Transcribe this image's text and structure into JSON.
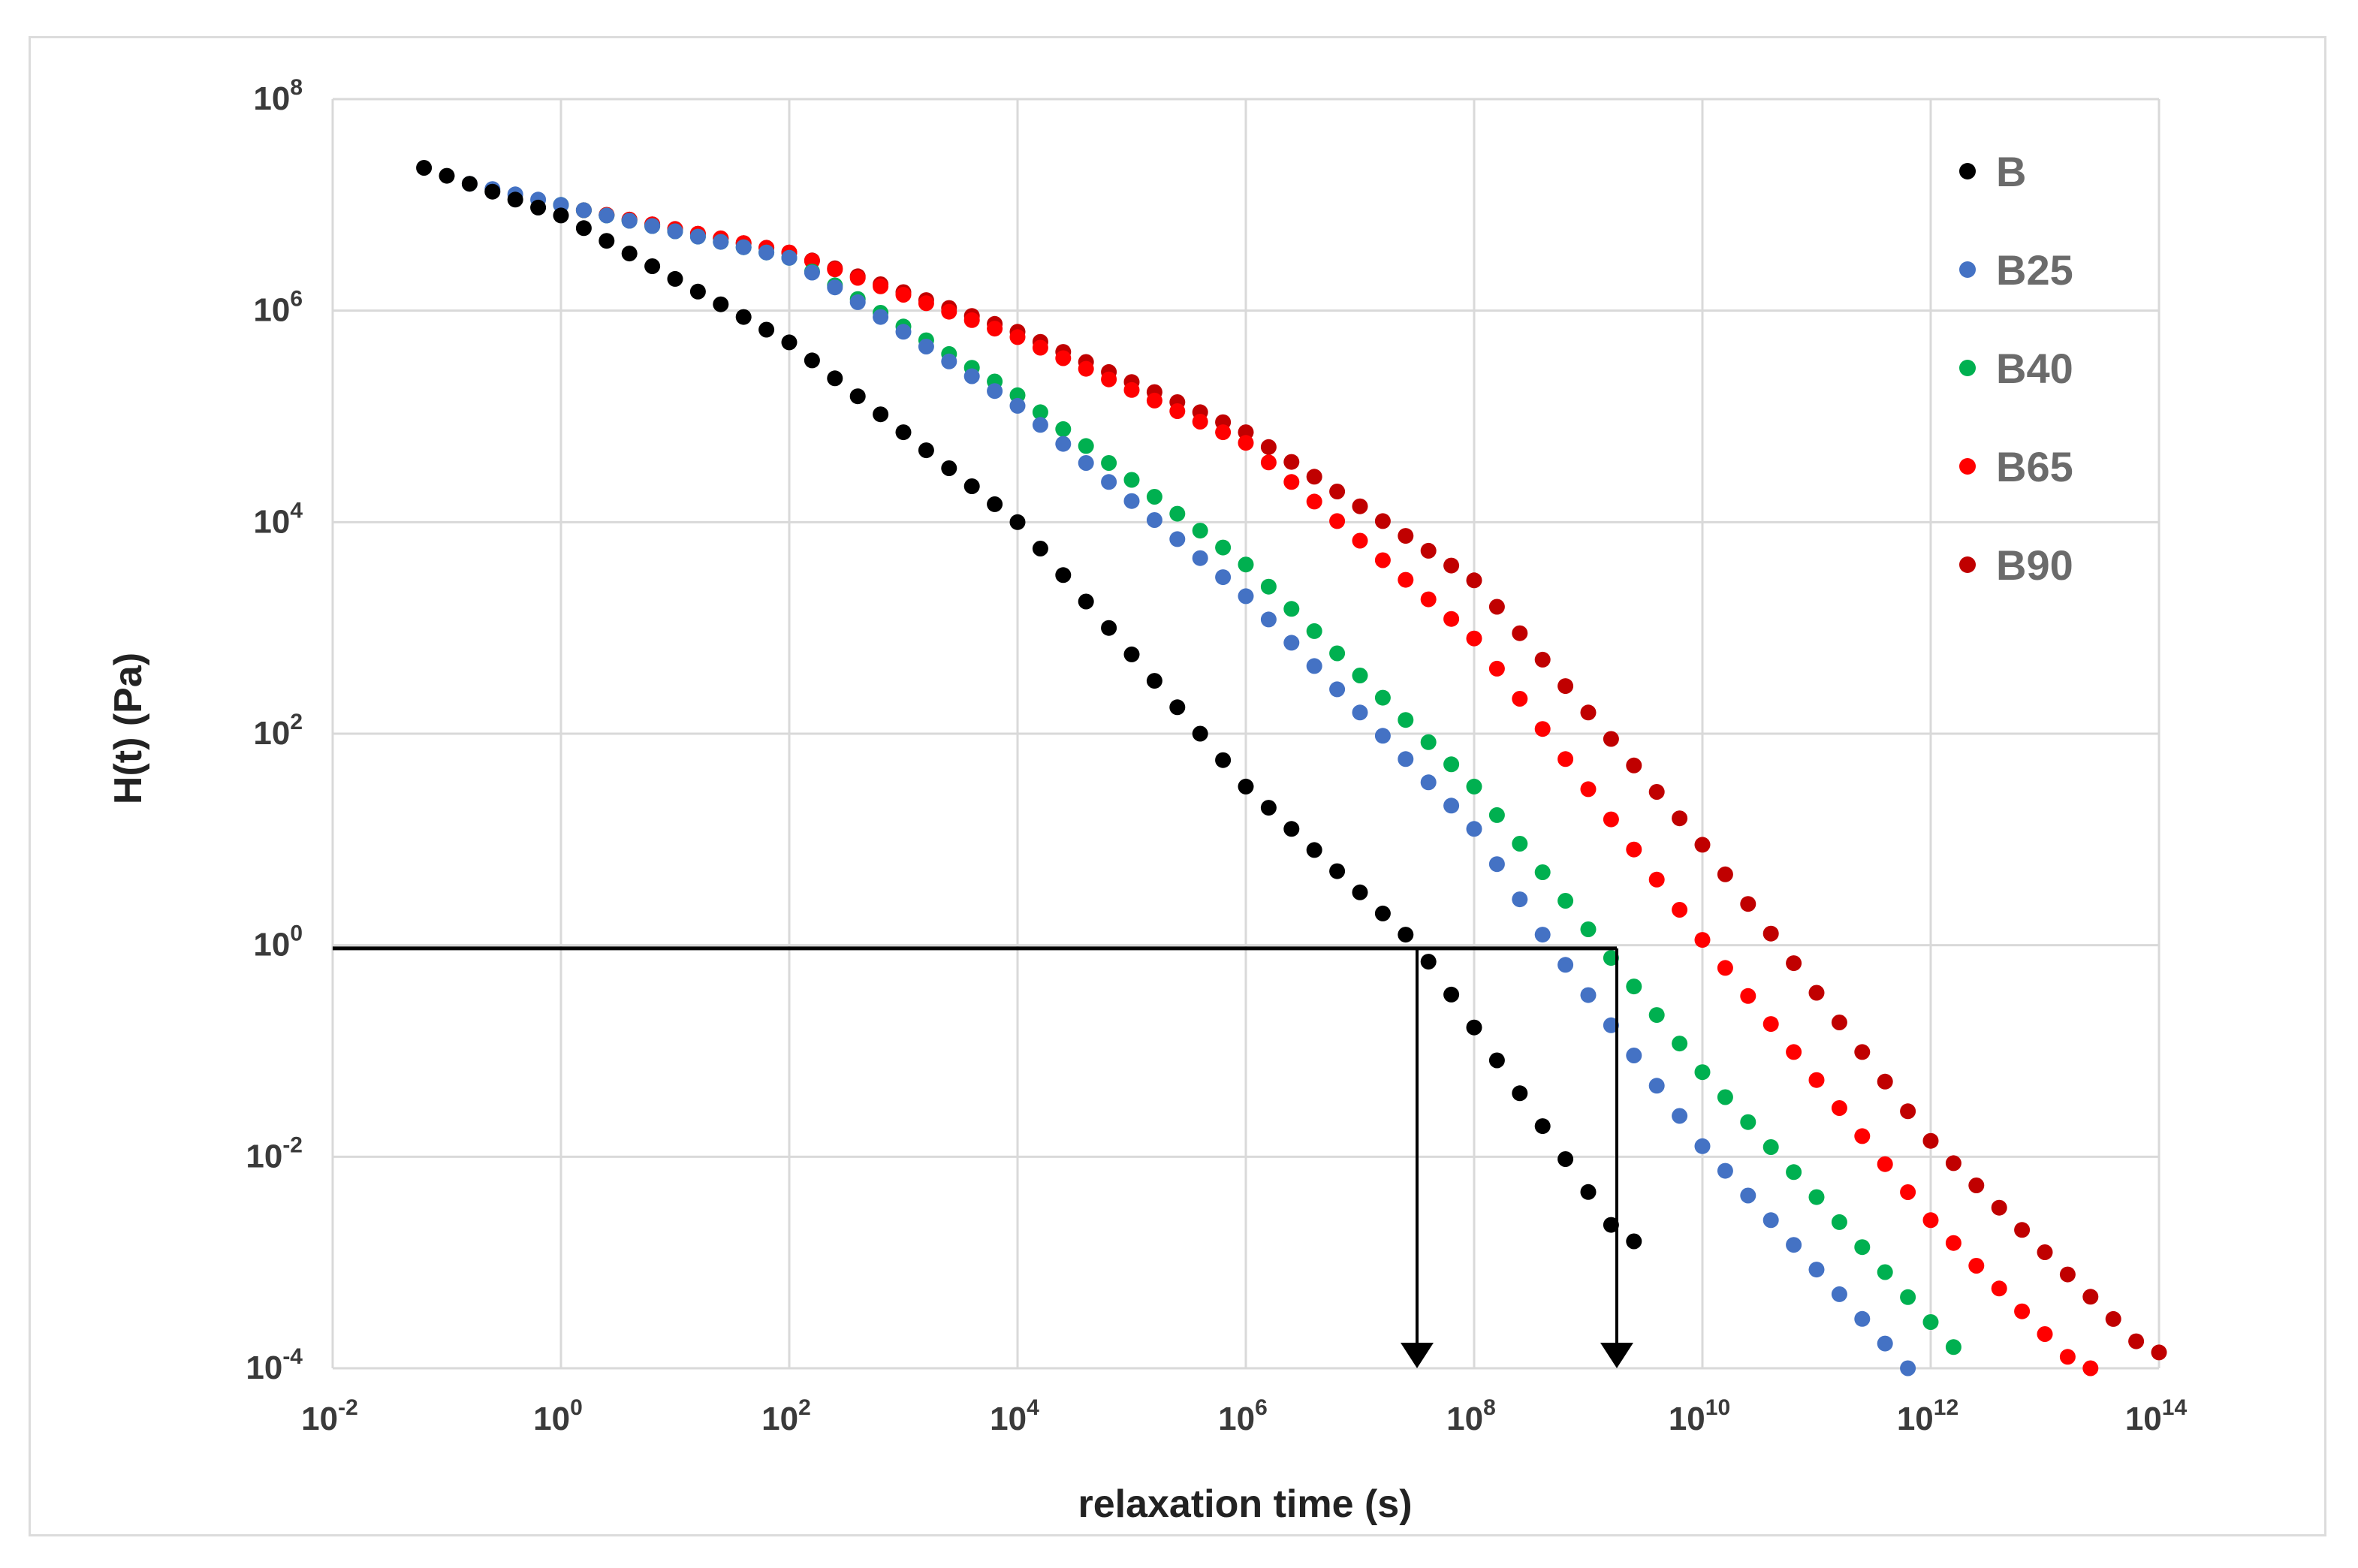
{
  "chart_data": {
    "type": "scatter",
    "title": "",
    "xlabel": "relaxation time (s)",
    "ylabel": "H(t) (Pa)",
    "x_scale": "log",
    "y_scale": "log",
    "xlim_exp": [
      -2,
      14
    ],
    "ylim_exp": [
      -4,
      8
    ],
    "x_ticks": [
      {
        "base": "10",
        "exp": "-2"
      },
      {
        "base": "10",
        "exp": "0"
      },
      {
        "base": "10",
        "exp": "2"
      },
      {
        "base": "10",
        "exp": "4"
      },
      {
        "base": "10",
        "exp": "6"
      },
      {
        "base": "10",
        "exp": "8"
      },
      {
        "base": "10",
        "exp": "10"
      },
      {
        "base": "10",
        "exp": "12"
      },
      {
        "base": "10",
        "exp": "14"
      }
    ],
    "y_ticks": [
      {
        "base": "10",
        "exp": "-4"
      },
      {
        "base": "10",
        "exp": "-2"
      },
      {
        "base": "10",
        "exp": "0"
      },
      {
        "base": "10",
        "exp": "2"
      },
      {
        "base": "10",
        "exp": "4"
      },
      {
        "base": "10",
        "exp": "6"
      },
      {
        "base": "10",
        "exp": "8"
      }
    ],
    "grid": true,
    "legend_position": "top-right",
    "series": [
      {
        "name": "B",
        "color": "#000000",
        "start_log_t": -1.2,
        "end_log_t": 9.3,
        "step": 0.2,
        "anchors": [
          [
            -1.2,
            7.35
          ],
          [
            0,
            6.9
          ],
          [
            2,
            5.7
          ],
          [
            4,
            4.0
          ],
          [
            6,
            1.5
          ],
          [
            7.5,
            0.0
          ],
          [
            9.3,
            -2.8
          ]
        ]
      },
      {
        "name": "B25",
        "color": "#4472c4",
        "start_log_t": -0.8,
        "end_log_t": 11.8,
        "step": 0.2,
        "anchors": [
          [
            -0.8,
            7.2
          ],
          [
            0,
            7.0
          ],
          [
            2,
            6.5
          ],
          [
            4,
            5.1
          ],
          [
            6,
            3.3
          ],
          [
            8,
            1.1
          ],
          [
            8.6,
            0.1
          ],
          [
            10,
            -1.9
          ],
          [
            11.8,
            -4.0
          ]
        ]
      },
      {
        "name": "B40",
        "color": "#00b050",
        "start_log_t": 0,
        "end_log_t": 12.2,
        "step": 0.2,
        "anchors": [
          [
            0,
            7.0
          ],
          [
            2,
            6.5
          ],
          [
            4,
            5.2
          ],
          [
            6,
            3.6
          ],
          [
            8,
            1.5
          ],
          [
            10,
            -1.2
          ],
          [
            12.2,
            -3.8
          ]
        ]
      },
      {
        "name": "B65",
        "color": "#ff0000",
        "start_log_t": 0.2,
        "end_log_t": 13.3,
        "step": 0.2,
        "anchors": [
          [
            0.2,
            6.95
          ],
          [
            2,
            6.55
          ],
          [
            4,
            5.75
          ],
          [
            6,
            4.75
          ],
          [
            8,
            2.9
          ],
          [
            10,
            0.05
          ],
          [
            12,
            -2.6
          ],
          [
            13.3,
            -4.0
          ]
        ]
      },
      {
        "name": "B90",
        "color": "#c00000",
        "start_log_t": 0.2,
        "end_log_t": 13.9,
        "step": 0.2,
        "anchors": [
          [
            0.2,
            6.95
          ],
          [
            2,
            6.55
          ],
          [
            4,
            5.8
          ],
          [
            6,
            4.85
          ],
          [
            8,
            3.45
          ],
          [
            10,
            0.95
          ],
          [
            12,
            -1.85
          ],
          [
            13.9,
            -3.85
          ]
        ]
      }
    ],
    "annotations": {
      "horizontal_line_log_y": -0.03,
      "arrows_log_x": [
        7.5,
        9.25
      ]
    }
  }
}
